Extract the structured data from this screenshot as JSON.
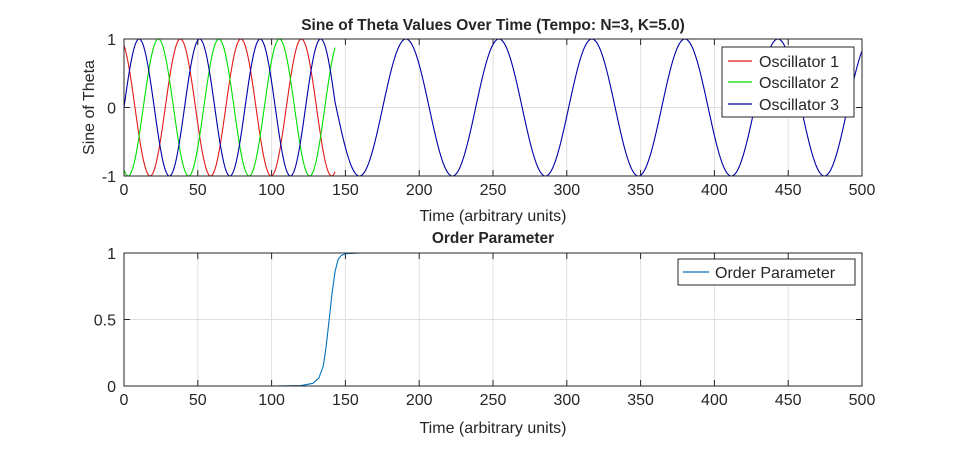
{
  "window": {
    "background": "#ffffff"
  },
  "chart_data": [
    {
      "type": "line",
      "title": "Sine of Theta Values Over Time (Tempo: N=3, K=5.0)",
      "xlabel": "Time (arbitrary units)",
      "ylabel": "Sine of Theta",
      "xlim": [
        0,
        500
      ],
      "ylim": [
        -1,
        1
      ],
      "xticks": [
        0,
        50,
        100,
        150,
        200,
        250,
        300,
        350,
        400,
        450,
        500
      ],
      "yticks": [
        -1,
        0,
        1
      ],
      "grid": true,
      "legend_position": "top-right",
      "sync_time": 143,
      "post_sync_period": 63,
      "series": [
        {
          "name": "Oscillator 1",
          "color": "#e41a1c",
          "period": 41,
          "phase": 2.0
        },
        {
          "name": "Oscillator 2",
          "color": "#00e000",
          "period": 41,
          "phase": -2.0
        },
        {
          "name": "Oscillator 3",
          "color": "#0000a8",
          "period": 41,
          "phase": 0.0
        }
      ]
    },
    {
      "type": "line",
      "title": "Order Parameter",
      "xlabel": "Time (arbitrary units)",
      "ylabel": "",
      "xlim": [
        0,
        500
      ],
      "ylim": [
        0,
        1
      ],
      "xticks": [
        0,
        50,
        100,
        150,
        200,
        250,
        300,
        350,
        400,
        450,
        500
      ],
      "yticks": [
        0,
        0.5,
        1
      ],
      "grid": true,
      "legend_position": "top-right",
      "series": [
        {
          "name": "Order Parameter",
          "color": "#0072bd",
          "x": [
            0,
            100,
            120,
            128,
            132,
            135,
            137,
            139,
            141,
            143,
            145,
            147,
            150,
            160,
            200,
            300,
            400,
            500
          ],
          "y": [
            0,
            0,
            0.003,
            0.02,
            0.06,
            0.15,
            0.3,
            0.5,
            0.7,
            0.86,
            0.95,
            0.98,
            0.995,
            1,
            1,
            1,
            1,
            1
          ]
        }
      ]
    }
  ]
}
